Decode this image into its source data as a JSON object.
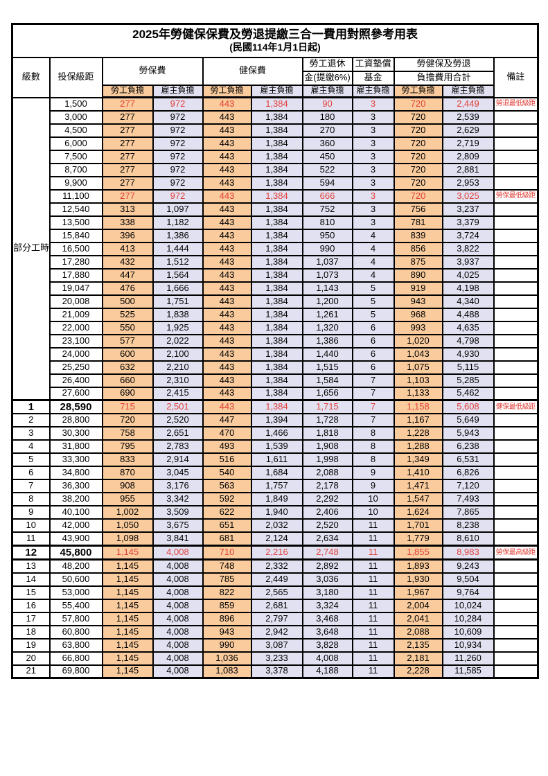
{
  "title": "2025年勞健保保費及勞退提繳三合一費用對照參考用表",
  "subtitle": "(民國114年1月1日起)",
  "colors": {
    "employee_burden_bg": "#F9CB9D",
    "employer_burden_bg": "#E1E1F1",
    "highlight_text": "#E2403A",
    "border": "#000000"
  },
  "header": {
    "level": "級數",
    "salary_bracket": "投保級距",
    "labor_insurance": "勞保費",
    "health_insurance": "健保費",
    "pension_line1": "勞工退休",
    "pension_line2": "金(提繳6%)",
    "wage_fund_line1": "工資墊償",
    "wage_fund_line2": "基金",
    "total_line1": "勞健保及勞退",
    "total_line2": "負擔費用合計",
    "remark": "備註",
    "employee_burden": "勞工負擔",
    "employer_burden": "雇主負擔"
  },
  "part_time": {
    "label": "部分工時",
    "rowspan": 23
  },
  "rows": [
    {
      "salary": "1,500",
      "cells": [
        "277",
        "972",
        "443",
        "1,384",
        "90",
        "3",
        "720",
        "2,449"
      ],
      "remark": "勞退最低級距",
      "hl": true
    },
    {
      "salary": "3,000",
      "cells": [
        "277",
        "972",
        "443",
        "1,384",
        "180",
        "3",
        "720",
        "2,539"
      ],
      "remark": ""
    },
    {
      "salary": "4,500",
      "cells": [
        "277",
        "972",
        "443",
        "1,384",
        "270",
        "3",
        "720",
        "2,629"
      ],
      "remark": ""
    },
    {
      "salary": "6,000",
      "cells": [
        "277",
        "972",
        "443",
        "1,384",
        "360",
        "3",
        "720",
        "2,719"
      ],
      "remark": ""
    },
    {
      "salary": "7,500",
      "cells": [
        "277",
        "972",
        "443",
        "1,384",
        "450",
        "3",
        "720",
        "2,809"
      ],
      "remark": ""
    },
    {
      "salary": "8,700",
      "cells": [
        "277",
        "972",
        "443",
        "1,384",
        "522",
        "3",
        "720",
        "2,881"
      ],
      "remark": ""
    },
    {
      "salary": "9,900",
      "cells": [
        "277",
        "972",
        "443",
        "1,384",
        "594",
        "3",
        "720",
        "2,953"
      ],
      "remark": ""
    },
    {
      "salary": "11,100",
      "cells": [
        "277",
        "972",
        "443",
        "1,384",
        "666",
        "3",
        "720",
        "3,025"
      ],
      "remark": "勞保最低級距",
      "hl": true
    },
    {
      "salary": "12,540",
      "cells": [
        "313",
        "1,097",
        "443",
        "1,384",
        "752",
        "3",
        "756",
        "3,237"
      ],
      "remark": ""
    },
    {
      "salary": "13,500",
      "cells": [
        "338",
        "1,182",
        "443",
        "1,384",
        "810",
        "3",
        "781",
        "3,379"
      ],
      "remark": ""
    },
    {
      "salary": "15,840",
      "cells": [
        "396",
        "1,386",
        "443",
        "1,384",
        "950",
        "4",
        "839",
        "3,724"
      ],
      "remark": ""
    },
    {
      "salary": "16,500",
      "cells": [
        "413",
        "1,444",
        "443",
        "1,384",
        "990",
        "4",
        "856",
        "3,822"
      ],
      "remark": ""
    },
    {
      "salary": "17,280",
      "cells": [
        "432",
        "1,512",
        "443",
        "1,384",
        "1,037",
        "4",
        "875",
        "3,937"
      ],
      "remark": ""
    },
    {
      "salary": "17,880",
      "cells": [
        "447",
        "1,564",
        "443",
        "1,384",
        "1,073",
        "4",
        "890",
        "4,025"
      ],
      "remark": ""
    },
    {
      "salary": "19,047",
      "cells": [
        "476",
        "1,666",
        "443",
        "1,384",
        "1,143",
        "5",
        "919",
        "4,198"
      ],
      "remark": ""
    },
    {
      "salary": "20,008",
      "cells": [
        "500",
        "1,751",
        "443",
        "1,384",
        "1,200",
        "5",
        "943",
        "4,340"
      ],
      "remark": ""
    },
    {
      "salary": "21,009",
      "cells": [
        "525",
        "1,838",
        "443",
        "1,384",
        "1,261",
        "5",
        "968",
        "4,488"
      ],
      "remark": ""
    },
    {
      "salary": "22,000",
      "cells": [
        "550",
        "1,925",
        "443",
        "1,384",
        "1,320",
        "6",
        "993",
        "4,635"
      ],
      "remark": ""
    },
    {
      "salary": "23,100",
      "cells": [
        "577",
        "2,022",
        "443",
        "1,384",
        "1,386",
        "6",
        "1,020",
        "4,798"
      ],
      "remark": ""
    },
    {
      "salary": "24,000",
      "cells": [
        "600",
        "2,100",
        "443",
        "1,384",
        "1,440",
        "6",
        "1,043",
        "4,930"
      ],
      "remark": ""
    },
    {
      "salary": "25,250",
      "cells": [
        "632",
        "2,210",
        "443",
        "1,384",
        "1,515",
        "6",
        "1,075",
        "5,115"
      ],
      "remark": ""
    },
    {
      "salary": "26,400",
      "cells": [
        "660",
        "2,310",
        "443",
        "1,384",
        "1,584",
        "7",
        "1,103",
        "5,285"
      ],
      "remark": ""
    },
    {
      "salary": "27,600",
      "cells": [
        "690",
        "2,415",
        "443",
        "1,384",
        "1,656",
        "7",
        "1,133",
        "5,462"
      ],
      "remark": ""
    },
    {
      "level": "1",
      "salary": "28,590",
      "cells": [
        "715",
        "2,501",
        "443",
        "1,384",
        "1,715",
        "7",
        "1,158",
        "5,608"
      ],
      "remark": "健保最低級距",
      "hl": true,
      "big": true,
      "thick_top": true
    },
    {
      "level": "2",
      "salary": "28,800",
      "cells": [
        "720",
        "2,520",
        "447",
        "1,394",
        "1,728",
        "7",
        "1,167",
        "5,649"
      ],
      "remark": ""
    },
    {
      "level": "3",
      "salary": "30,300",
      "cells": [
        "758",
        "2,651",
        "470",
        "1,466",
        "1,818",
        "8",
        "1,228",
        "5,943"
      ],
      "remark": ""
    },
    {
      "level": "4",
      "salary": "31,800",
      "cells": [
        "795",
        "2,783",
        "493",
        "1,539",
        "1,908",
        "8",
        "1,288",
        "6,238"
      ],
      "remark": ""
    },
    {
      "level": "5",
      "salary": "33,300",
      "cells": [
        "833",
        "2,914",
        "516",
        "1,611",
        "1,998",
        "8",
        "1,349",
        "6,531"
      ],
      "remark": ""
    },
    {
      "level": "6",
      "salary": "34,800",
      "cells": [
        "870",
        "3,045",
        "540",
        "1,684",
        "2,088",
        "9",
        "1,410",
        "6,826"
      ],
      "remark": ""
    },
    {
      "level": "7",
      "salary": "36,300",
      "cells": [
        "908",
        "3,176",
        "563",
        "1,757",
        "2,178",
        "9",
        "1,471",
        "7,120"
      ],
      "remark": ""
    },
    {
      "level": "8",
      "salary": "38,200",
      "cells": [
        "955",
        "3,342",
        "592",
        "1,849",
        "2,292",
        "10",
        "1,547",
        "7,493"
      ],
      "remark": ""
    },
    {
      "level": "9",
      "salary": "40,100",
      "cells": [
        "1,002",
        "3,509",
        "622",
        "1,940",
        "2,406",
        "10",
        "1,624",
        "7,865"
      ],
      "remark": ""
    },
    {
      "level": "10",
      "salary": "42,000",
      "cells": [
        "1,050",
        "3,675",
        "651",
        "2,032",
        "2,520",
        "11",
        "1,701",
        "8,238"
      ],
      "remark": ""
    },
    {
      "level": "11",
      "salary": "43,900",
      "cells": [
        "1,098",
        "3,841",
        "681",
        "2,124",
        "2,634",
        "11",
        "1,779",
        "8,610"
      ],
      "remark": ""
    },
    {
      "level": "12",
      "salary": "45,800",
      "cells": [
        "1,145",
        "4,008",
        "710",
        "2,216",
        "2,748",
        "11",
        "1,855",
        "8,983"
      ],
      "remark": "勞保最高級距",
      "hl": true,
      "big": true,
      "thick_top": true,
      "thick_bottom": true
    },
    {
      "level": "13",
      "salary": "48,200",
      "cells": [
        "1,145",
        "4,008",
        "748",
        "2,332",
        "2,892",
        "11",
        "1,893",
        "9,243"
      ],
      "remark": ""
    },
    {
      "level": "14",
      "salary": "50,600",
      "cells": [
        "1,145",
        "4,008",
        "785",
        "2,449",
        "3,036",
        "11",
        "1,930",
        "9,504"
      ],
      "remark": ""
    },
    {
      "level": "15",
      "salary": "53,000",
      "cells": [
        "1,145",
        "4,008",
        "822",
        "2,565",
        "3,180",
        "11",
        "1,967",
        "9,764"
      ],
      "remark": ""
    },
    {
      "level": "16",
      "salary": "55,400",
      "cells": [
        "1,145",
        "4,008",
        "859",
        "2,681",
        "3,324",
        "11",
        "2,004",
        "10,024"
      ],
      "remark": ""
    },
    {
      "level": "17",
      "salary": "57,800",
      "cells": [
        "1,145",
        "4,008",
        "896",
        "2,797",
        "3,468",
        "11",
        "2,041",
        "10,284"
      ],
      "remark": ""
    },
    {
      "level": "18",
      "salary": "60,800",
      "cells": [
        "1,145",
        "4,008",
        "943",
        "2,942",
        "3,648",
        "11",
        "2,088",
        "10,609"
      ],
      "remark": ""
    },
    {
      "level": "19",
      "salary": "63,800",
      "cells": [
        "1,145",
        "4,008",
        "990",
        "3,087",
        "3,828",
        "11",
        "2,135",
        "10,934"
      ],
      "remark": ""
    },
    {
      "level": "20",
      "salary": "66,800",
      "cells": [
        "1,145",
        "4,008",
        "1,036",
        "3,233",
        "4,008",
        "11",
        "2,181",
        "11,260"
      ],
      "remark": ""
    },
    {
      "level": "21",
      "salary": "69,800",
      "cells": [
        "1,145",
        "4,008",
        "1,083",
        "3,378",
        "4,188",
        "11",
        "2,228",
        "11,585"
      ],
      "remark": ""
    }
  ]
}
